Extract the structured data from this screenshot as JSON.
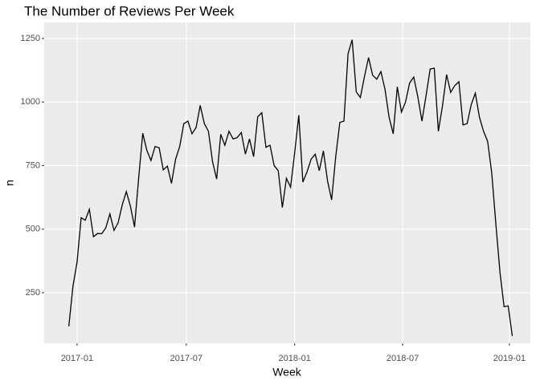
{
  "chart_data": {
    "type": "line",
    "title": "The Number of Reviews Per Week",
    "x_label": "Week",
    "y_label": "n",
    "x": [
      -2,
      -1,
      0,
      1,
      2,
      3,
      4,
      5,
      6,
      7,
      8,
      9,
      10,
      11,
      12,
      13,
      14,
      15,
      16,
      17,
      18,
      19,
      20,
      21,
      22,
      23,
      24,
      25,
      26,
      27,
      28,
      29,
      30,
      31,
      32,
      33,
      34,
      35,
      36,
      37,
      38,
      39,
      40,
      41,
      42,
      43,
      44,
      45,
      46,
      47,
      48,
      49,
      50,
      51,
      52,
      53,
      54,
      55,
      56,
      57,
      58,
      59,
      60,
      61,
      62,
      63,
      64,
      65,
      66,
      67,
      68,
      69,
      70,
      71,
      72,
      73,
      74,
      75,
      76,
      77,
      78,
      79,
      80,
      81,
      82,
      83,
      84,
      85,
      86,
      87,
      88,
      89,
      90,
      91,
      92,
      93,
      94,
      95,
      96,
      97,
      98,
      99,
      100,
      101,
      102,
      103,
      104,
      105,
      106
    ],
    "values": [
      118,
      275,
      370,
      545,
      535,
      578,
      470,
      483,
      482,
      505,
      560,
      495,
      525,
      595,
      648,
      590,
      508,
      700,
      877,
      810,
      770,
      825,
      820,
      733,
      748,
      680,
      775,
      825,
      915,
      925,
      875,
      900,
      987,
      915,
      885,
      765,
      697,
      873,
      830,
      885,
      855,
      860,
      880,
      795,
      855,
      785,
      942,
      958,
      822,
      830,
      750,
      730,
      585,
      700,
      665,
      800,
      948,
      685,
      725,
      775,
      795,
      730,
      808,
      690,
      615,
      785,
      920,
      925,
      1190,
      1245,
      1040,
      1018,
      1100,
      1175,
      1105,
      1090,
      1120,
      1050,
      940,
      875,
      1060,
      960,
      1000,
      1075,
      1098,
      1020,
      925,
      1025,
      1130,
      1133,
      885,
      985,
      1108,
      1038,
      1065,
      1080,
      910,
      915,
      990,
      1035,
      940,
      885,
      845,
      720,
      520,
      330,
      195,
      198,
      80
    ],
    "color": "#000000",
    "xlim": [
      -8.0,
      110.4
    ],
    "xticks": [
      {
        "value": 0,
        "label": "2017-01"
      },
      {
        "value": 26.6,
        "label": "2017-07"
      },
      {
        "value": 53,
        "label": "2018-01"
      },
      {
        "value": 79.3,
        "label": "2018-07"
      },
      {
        "value": 105.3,
        "label": "2019-01"
      }
    ],
    "ylim": [
      51,
      1313
    ],
    "yticks": [
      250,
      500,
      750,
      1000,
      1250
    ],
    "grid": true
  }
}
